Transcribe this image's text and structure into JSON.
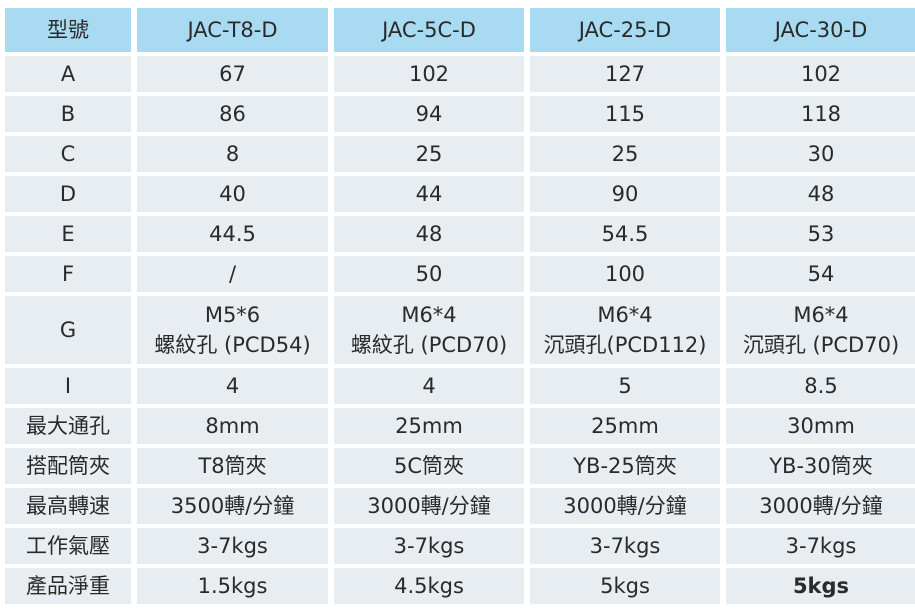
{
  "table": {
    "header": [
      "型號",
      "JAC-T8-D",
      "JAC-5C-D",
      "JAC-25-D",
      "JAC-30-D"
    ],
    "rows": [
      [
        "A",
        "67",
        "102",
        "127",
        "102"
      ],
      [
        "B",
        "86",
        "94",
        "115",
        "118"
      ],
      [
        "C",
        "8",
        "25",
        "25",
        "30"
      ],
      [
        "D",
        "40",
        "44",
        "90",
        "48"
      ],
      [
        "E",
        "44.5",
        "48",
        "54.5",
        "53"
      ],
      [
        "F",
        "/",
        "50",
        "100",
        "54"
      ],
      [
        "G",
        [
          "M5*6",
          "螺紋孔 (PCD54)"
        ],
        [
          "M6*4",
          "螺紋孔 (PCD70)"
        ],
        [
          "M6*4",
          "沉頭孔(PCD112)"
        ],
        [
          "M6*4",
          "沉頭孔 (PCD70)"
        ]
      ],
      [
        "I",
        "4",
        "4",
        "5",
        "8.5"
      ],
      [
        "最大通孔",
        "8mm",
        "25mm",
        "25mm",
        "30mm"
      ],
      [
        "搭配筒夾",
        "T8筒夾",
        "5C筒夾",
        "YB-25筒夾",
        "YB-30筒夾"
      ],
      [
        "最高轉速",
        "3500轉/分鐘",
        "3000轉/分鐘",
        "3000轉/分鐘",
        "3000轉/分鐘"
      ],
      [
        "工作氣壓",
        "3-7kgs",
        "3-7kgs",
        "3-7kgs",
        "3-7kgs"
      ],
      [
        "產品淨重",
        "1.5kgs",
        "4.5kgs",
        "5kgs",
        "5kgs"
      ]
    ]
  }
}
